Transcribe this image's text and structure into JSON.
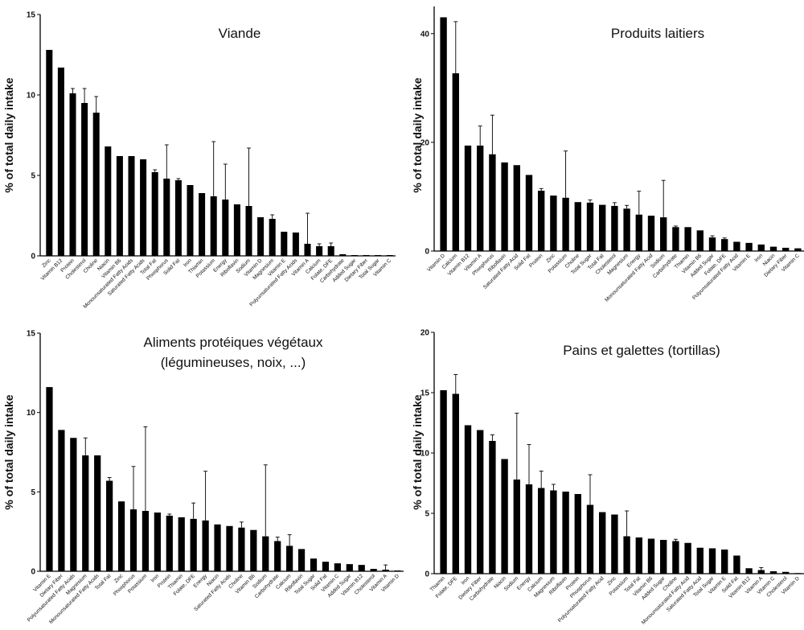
{
  "colors": {
    "bars": "#000000",
    "axes": "#000000",
    "background": "#ffffff"
  },
  "chart_data": [
    {
      "type": "bar",
      "title": "Viande",
      "ylabel": "% of total daily intake",
      "ylim": [
        0,
        15
      ],
      "yticks": [
        0,
        5,
        10,
        15
      ],
      "categories": [
        "Zinc",
        "Vitamin B12",
        "Protein",
        "Cholesterol",
        "Choline",
        "Niacin",
        "Vitamin B6",
        "Monounsaturated Fatty Acids",
        "Saturated Fatty Acids",
        "Total Fat",
        "Phosphorus",
        "Solid Fat",
        "Iron",
        "Thiamin",
        "Potassium",
        "Energy",
        "Riboflavin",
        "Sodium",
        "Vitamin D",
        "Magnesium",
        "Vitamin E",
        "Polyunsaturated Fatty Acids",
        "Vitamin A",
        "Calcium",
        "Folate, DFE",
        "Carbohydrate",
        "Added Sugar",
        "Dietary Fiber",
        "Total Sugar",
        "Vitamin C"
      ],
      "values": [
        12.8,
        11.7,
        10.1,
        9.5,
        8.9,
        6.8,
        6.2,
        6.2,
        6.0,
        5.2,
        4.8,
        4.7,
        4.4,
        3.9,
        3.7,
        3.5,
        3.2,
        3.1,
        2.4,
        2.3,
        1.5,
        1.45,
        0.75,
        0.6,
        0.6,
        0.1,
        0.05,
        0.05,
        0.05,
        0.05
      ],
      "errors": [
        0,
        0,
        0.3,
        0.9,
        1.0,
        0,
        0,
        0,
        0,
        0.15,
        2.1,
        0.1,
        0,
        0,
        3.4,
        2.2,
        0,
        3.6,
        0,
        0.25,
        0,
        0,
        1.9,
        0.15,
        0.2,
        0,
        0,
        0,
        0,
        0
      ]
    },
    {
      "type": "bar",
      "title": "Produits laitiers",
      "ylabel": "% of total daily intake",
      "ylim": [
        0,
        45
      ],
      "yticks": [
        0,
        20,
        40
      ],
      "categories": [
        "Vitamin D",
        "Calcium",
        "Vitamin B12",
        "Vitamin A",
        "Phosphorus",
        "Riboflavin",
        "Saturated Fatty Acid",
        "Solid Fat",
        "Protein",
        "Zinc",
        "Potassium",
        "Choline",
        "Total Sugar",
        "Total Fat",
        "Cholesterol",
        "Magnesium",
        "Energy",
        "Monounsaturated Fatty Acid",
        "Sodium",
        "Carbohydrate",
        "Thiamin",
        "Vitamin B6",
        "Added Sugar",
        "Folate, DFE",
        "Polyunsaturated Fatty Acid",
        "Vitamin E",
        "Iron",
        "Niacin",
        "Dietary Fiber",
        "Vitamin C"
      ],
      "values": [
        43,
        32.7,
        19.4,
        19.4,
        17.8,
        16.3,
        15.8,
        14,
        11.1,
        10.2,
        9.8,
        9.0,
        8.9,
        8.5,
        8.3,
        7.8,
        6.7,
        6.5,
        6.2,
        4.4,
        4.4,
        3.8,
        2.5,
        2.2,
        1.7,
        1.5,
        1.2,
        0.8,
        0.6,
        0.5
      ],
      "errors": [
        0,
        9.5,
        0,
        3.6,
        7.2,
        0,
        0,
        0,
        0.4,
        0,
        8.6,
        0,
        0.5,
        0,
        0.6,
        0.6,
        4.3,
        0,
        6.8,
        0.2,
        0,
        0,
        0.3,
        0.2,
        0,
        0,
        0,
        0,
        0,
        0
      ]
    },
    {
      "type": "bar",
      "title": "Aliments protéiques végétaux",
      "subtitle": "(légumineuses, noix, ...)",
      "ylabel": "% of total daily intake",
      "ylim": [
        0,
        15
      ],
      "yticks": [
        0,
        5,
        10,
        15
      ],
      "categories": [
        "Vitamin E",
        "Dietary Fiber",
        "Polyunsaturated Fatty Acids",
        "Magnesium",
        "Monounsaturated Fatty Acids",
        "Total Fat",
        "Zinc",
        "Phosphorus",
        "Potassium",
        "Iron",
        "Protein",
        "Thiamin",
        "Folate, DFE",
        "Energy",
        "Niacin",
        "Saturated Fatty Acids",
        "Choline",
        "Vitamin B6",
        "Sodium",
        "Carbohydrate",
        "Calcium",
        "Riboflavin",
        "Total Sugar",
        "Solid Fat",
        "Vitamin C",
        "Added Sugar",
        "Vitamin B12",
        "Cholesterol",
        "Vitamin A",
        "Vitamin D"
      ],
      "values": [
        11.6,
        8.9,
        8.4,
        7.3,
        7.3,
        5.7,
        4.4,
        3.9,
        3.8,
        3.7,
        3.5,
        3.4,
        3.3,
        3.2,
        2.95,
        2.85,
        2.75,
        2.6,
        2.2,
        1.9,
        1.6,
        1.4,
        0.8,
        0.6,
        0.5,
        0.45,
        0.4,
        0.15,
        0.1,
        0.05
      ],
      "errors": [
        0,
        0,
        0,
        1.1,
        0,
        0.2,
        0,
        2.7,
        5.3,
        0,
        0.1,
        0,
        1.0,
        3.1,
        0,
        0,
        0.35,
        0,
        4.5,
        0.25,
        0.7,
        0,
        0,
        0,
        0,
        0,
        0,
        0,
        0.3,
        0
      ]
    },
    {
      "type": "bar",
      "title": "Pains et galettes (tortillas)",
      "ylabel": "% of total daily intake",
      "ylim": [
        0,
        20
      ],
      "yticks": [
        0,
        5,
        10,
        15,
        20
      ],
      "categories": [
        "Thiamin",
        "Folate, DFE",
        "Iron",
        "Dietary Fiber",
        "Carbohydrate",
        "Niacin",
        "Sodium",
        "Energy",
        "Calcium",
        "Magnesium",
        "Riboflavin",
        "Protein",
        "Phosphorus",
        "Polyunsaturated Fatty Acid",
        "Zinc",
        "Potassium",
        "Total Fat",
        "Vitamin B6",
        "Added Sugar",
        "Choline",
        "Monounsaturated Fatty Acid",
        "Saturated Fatty Acid",
        "Total Sugar",
        "Vitamin E",
        "Solid Fat",
        "Vitamin B12",
        "Vitamin A",
        "Vitamin C",
        "Cholesterol",
        "Vitamin D"
      ],
      "values": [
        15.2,
        14.9,
        12.3,
        11.9,
        11.0,
        9.5,
        7.8,
        7.4,
        7.1,
        6.9,
        6.8,
        6.6,
        5.7,
        5.1,
        4.9,
        3.1,
        3.0,
        2.9,
        2.8,
        2.7,
        2.55,
        2.15,
        2.1,
        2.0,
        1.5,
        0.45,
        0.3,
        0.2,
        0.15,
        0.05
      ],
      "errors": [
        0,
        1.6,
        0,
        0,
        0.5,
        0,
        5.5,
        3.3,
        1.4,
        0.5,
        0,
        0,
        2.5,
        0,
        0,
        2.1,
        0,
        0,
        0,
        0.15,
        0,
        0,
        0,
        0,
        0,
        0,
        0.2,
        0,
        0,
        0
      ]
    }
  ]
}
